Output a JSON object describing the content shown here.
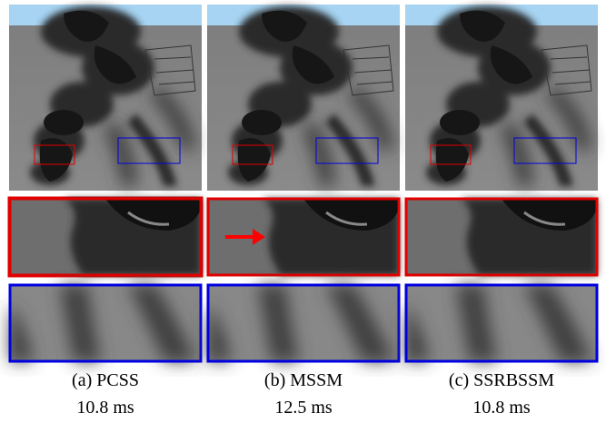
{
  "panels": [
    {
      "label": "(a) PCSS",
      "time": "10.8 ms"
    },
    {
      "label": "(b) MSSM",
      "time": "12.5 ms"
    },
    {
      "label": "(c) SSRBSSM",
      "time": "10.8 ms"
    }
  ]
}
